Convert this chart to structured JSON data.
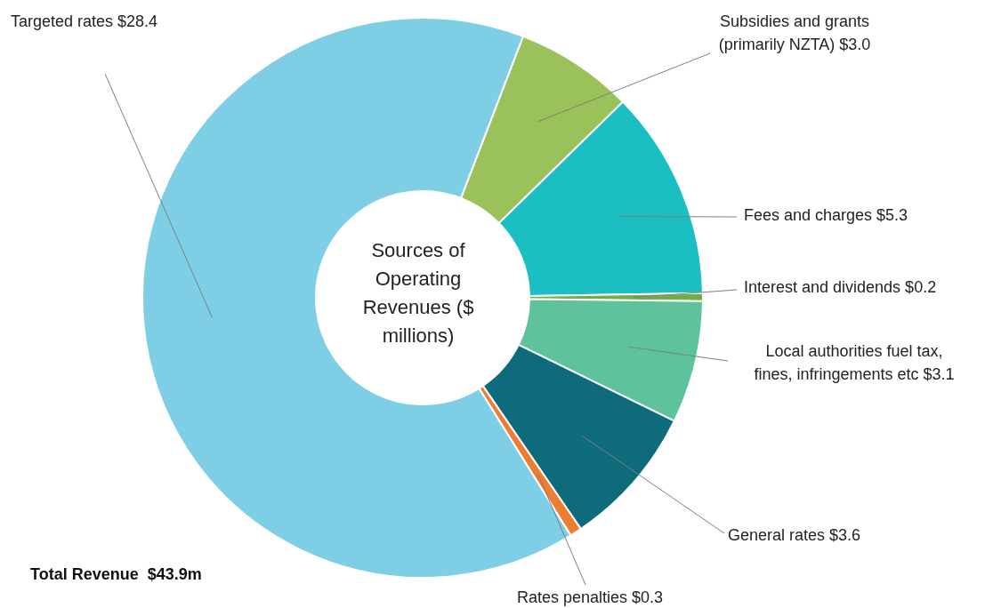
{
  "chart_data": {
    "type": "donut",
    "title": "Sources of Operating Revenues ($ millions)",
    "categories": [
      "Subsidies and grants (primarily NZTA)",
      "Fees and charges",
      "Interest and dividends",
      "Local authorities fuel tax, fines, infringements etc",
      "General rates",
      "Rates penalties",
      "Targeted rates"
    ],
    "values": [
      3.0,
      5.3,
      0.2,
      3.1,
      3.6,
      0.3,
      28.4
    ],
    "value_labels": [
      "$3.0",
      "$5.3",
      "$0.2",
      "$3.1",
      "$3.6",
      "$0.3",
      "$28.4"
    ],
    "colors": [
      "#9bc25a",
      "#1cbfc1",
      "#70ad47",
      "#5ec29c",
      "#0d6b7b",
      "#ed7d31",
      "#7ecee6"
    ],
    "annotations": [
      "Total Revenue  $43.9m"
    ],
    "legend": false
  }
}
